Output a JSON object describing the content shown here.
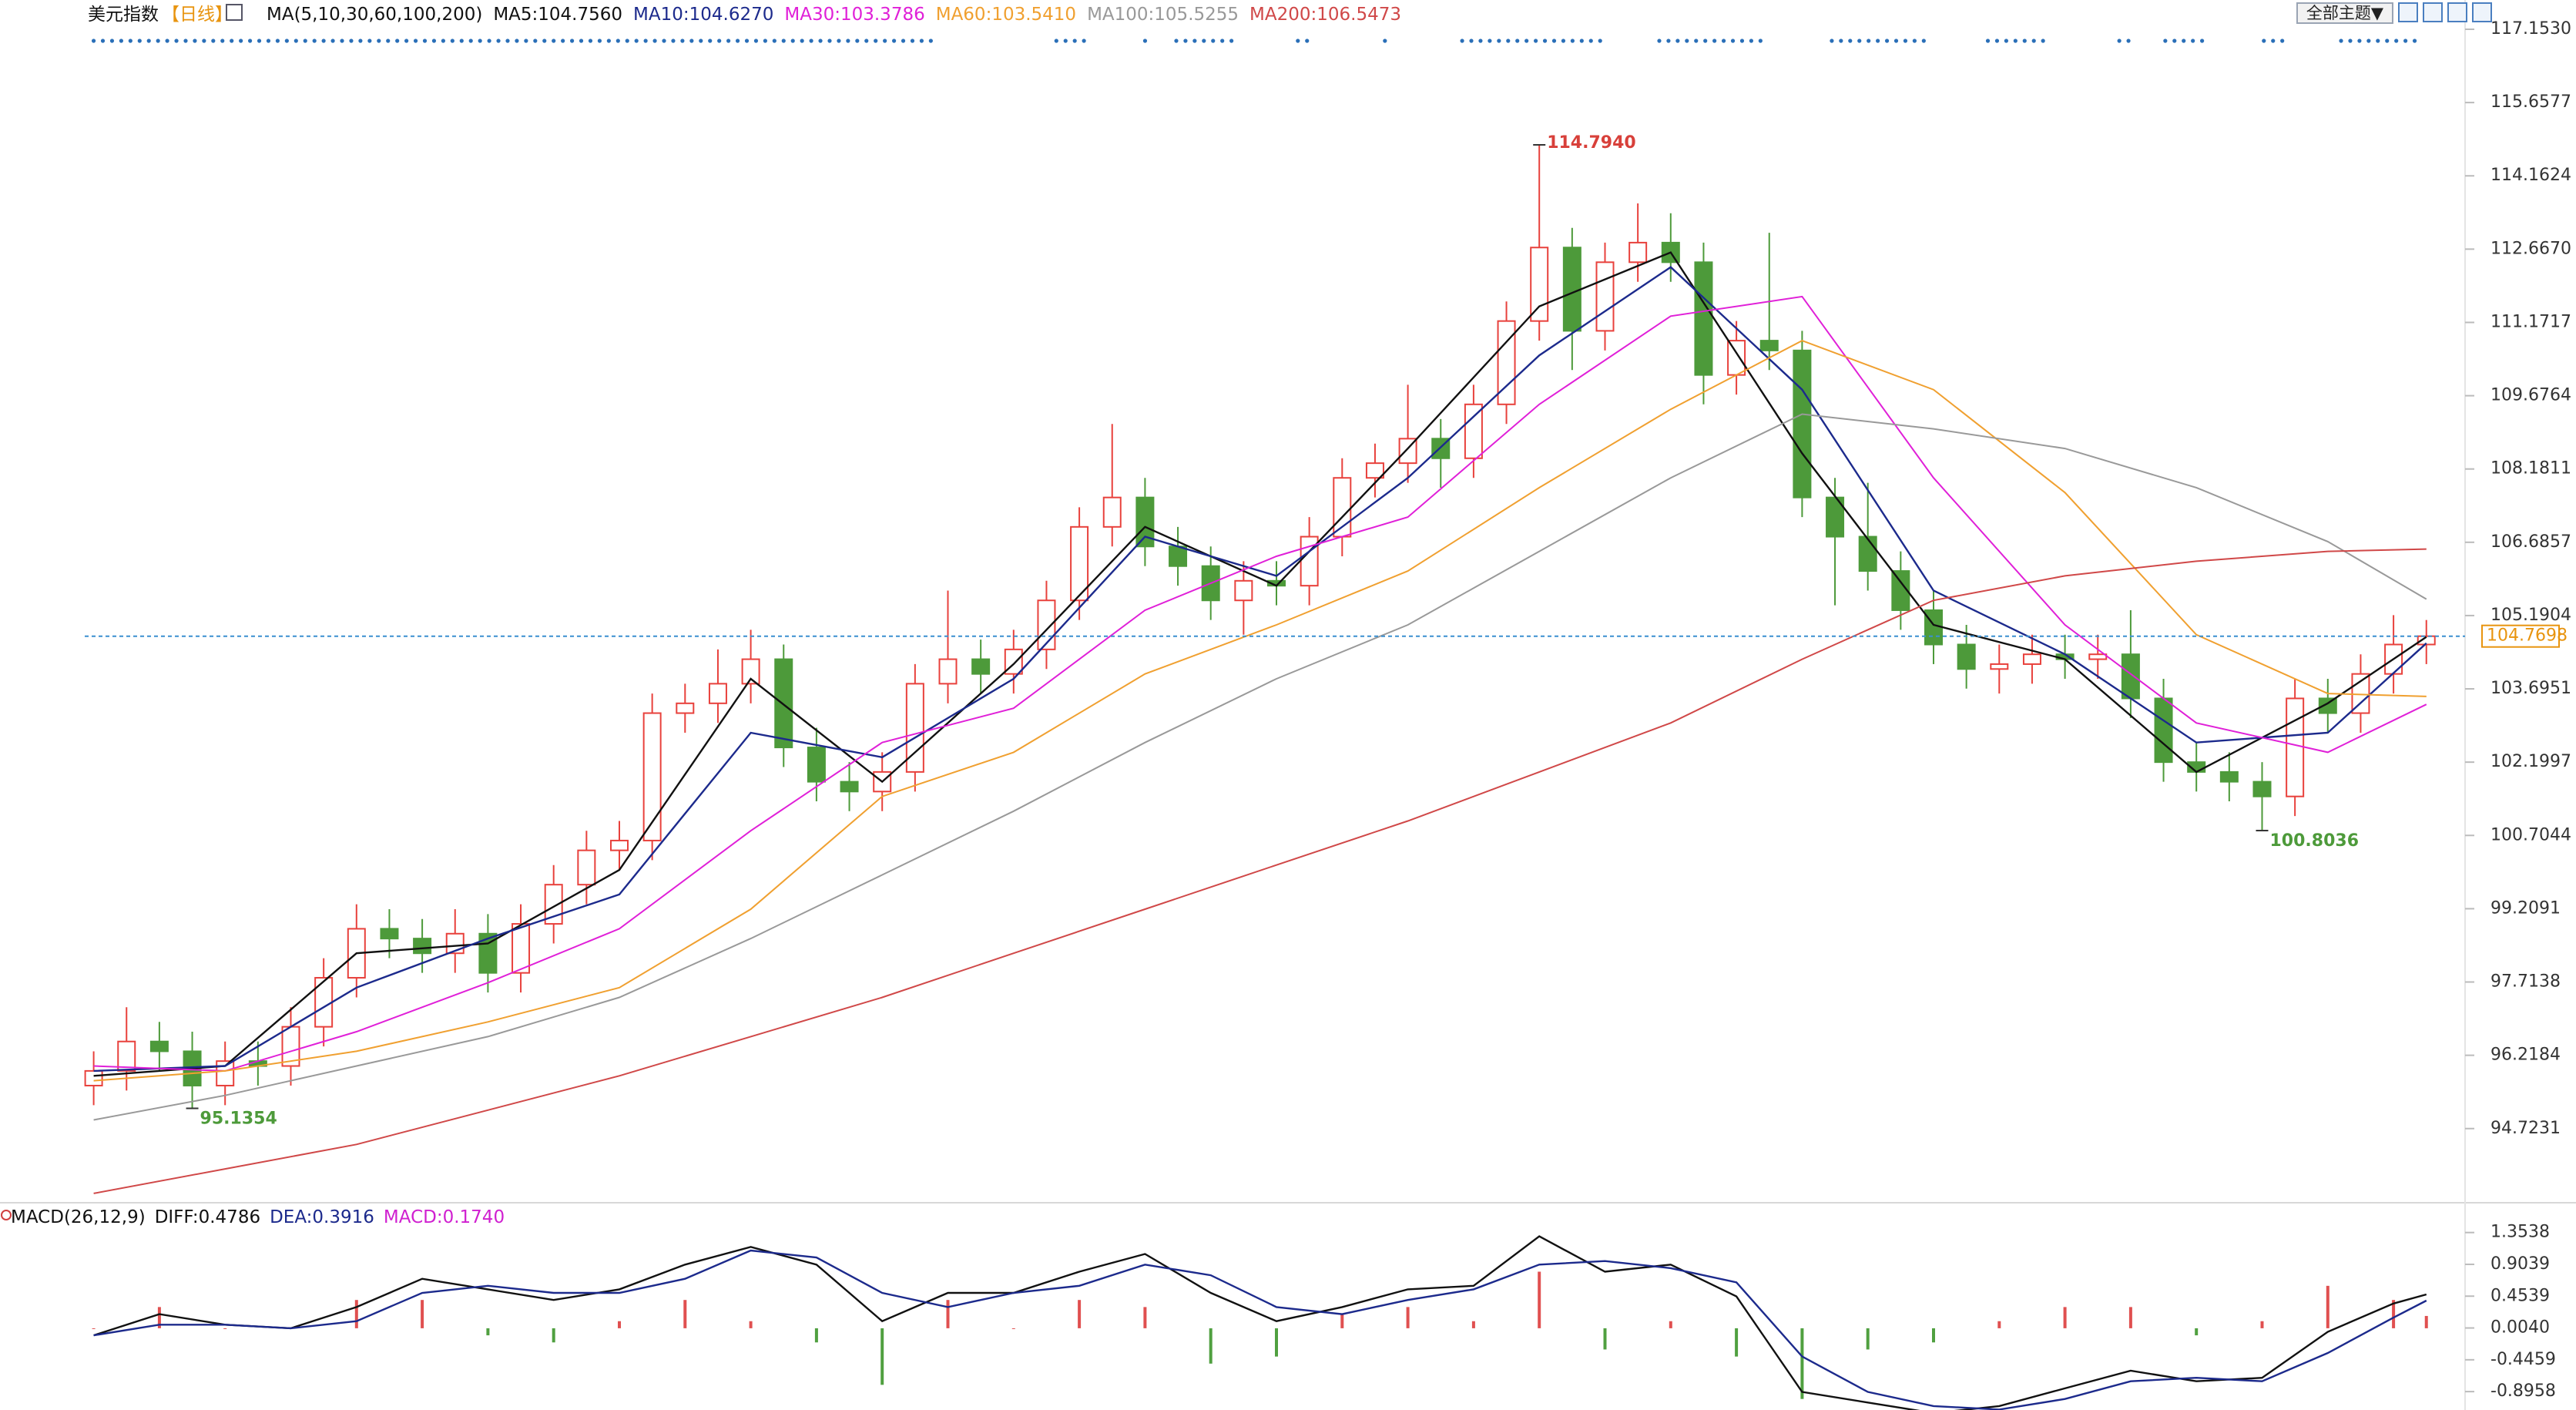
{
  "toolbar": {
    "theme_button": "全部主题▼"
  },
  "chart_data": [
    {
      "type": "candlestick",
      "title": "美元指数",
      "period": "【日线】",
      "ma_params": "MA(5,10,30,60,100,200)",
      "open": [
        95.6,
        95.9,
        96.5,
        96.3,
        95.6,
        96.1,
        96.0,
        96.8,
        97.8,
        98.8,
        98.6,
        98.3,
        98.7,
        97.9,
        98.9,
        99.7,
        100.4,
        100.6,
        103.2,
        103.4,
        103.8,
        104.3,
        102.5,
        101.8,
        101.6,
        102.0,
        103.8,
        104.3,
        104.0,
        104.5,
        105.5,
        107.0,
        107.6,
        106.6,
        106.2,
        105.5,
        105.9,
        105.8,
        106.8,
        108.0,
        108.3,
        108.8,
        108.4,
        109.5,
        111.2,
        112.7,
        111.0,
        112.4,
        112.8,
        112.4,
        110.1,
        110.8,
        110.6,
        107.6,
        106.8,
        106.1,
        105.3,
        104.6,
        104.1,
        104.2,
        104.4,
        104.3,
        104.4,
        103.5,
        102.2,
        102.0,
        101.8,
        101.5,
        103.5,
        103.2,
        104.0,
        104.6
      ],
      "high": [
        96.3,
        97.2,
        96.9,
        96.7,
        96.5,
        96.5,
        97.2,
        98.2,
        99.3,
        99.2,
        99.0,
        99.2,
        99.1,
        99.3,
        100.1,
        100.8,
        101.0,
        103.6,
        103.8,
        104.5,
        104.9,
        104.6,
        102.9,
        102.2,
        102.4,
        104.2,
        105.7,
        104.7,
        104.9,
        105.9,
        107.4,
        109.1,
        108.0,
        107.0,
        106.6,
        106.3,
        106.3,
        107.2,
        108.4,
        108.7,
        109.9,
        109.2,
        109.9,
        111.6,
        114.794,
        113.1,
        112.8,
        113.6,
        113.4,
        112.8,
        111.2,
        113.0,
        111.0,
        108.0,
        107.9,
        106.5,
        105.7,
        105.0,
        104.6,
        104.8,
        104.8,
        104.8,
        105.3,
        103.9,
        102.6,
        102.4,
        102.2,
        103.9,
        103.9,
        104.4,
        105.2,
        105.1
      ],
      "low": [
        95.2,
        95.5,
        95.9,
        95.1354,
        95.2,
        95.6,
        95.6,
        96.4,
        97.4,
        98.2,
        97.9,
        97.9,
        97.5,
        97.5,
        98.5,
        99.3,
        100.0,
        100.2,
        102.8,
        103.0,
        103.4,
        102.1,
        101.4,
        101.2,
        101.2,
        101.6,
        103.4,
        103.6,
        103.6,
        104.1,
        105.1,
        106.6,
        106.2,
        105.8,
        105.1,
        104.8,
        105.4,
        105.4,
        106.4,
        107.6,
        107.9,
        107.8,
        108.0,
        109.1,
        110.8,
        110.2,
        110.6,
        112.0,
        112.0,
        109.5,
        109.7,
        110.2,
        107.2,
        105.4,
        105.7,
        104.9,
        104.2,
        103.7,
        103.6,
        103.8,
        103.9,
        103.9,
        103.1,
        101.8,
        101.6,
        101.4,
        100.8036,
        101.1,
        102.8,
        102.8,
        103.6,
        104.2
      ],
      "close": [
        95.9,
        96.5,
        96.3,
        95.6,
        96.1,
        96.0,
        96.8,
        97.8,
        98.8,
        98.6,
        98.3,
        98.7,
        97.9,
        98.9,
        99.7,
        100.4,
        100.6,
        103.2,
        103.4,
        103.8,
        104.3,
        102.5,
        101.8,
        101.6,
        102.0,
        103.8,
        104.3,
        104.0,
        104.5,
        105.5,
        107.0,
        107.6,
        106.6,
        106.2,
        105.5,
        105.9,
        105.8,
        106.8,
        108.0,
        108.3,
        108.8,
        108.4,
        109.5,
        111.2,
        112.7,
        111.0,
        112.4,
        112.8,
        112.4,
        110.1,
        110.8,
        110.6,
        107.6,
        106.8,
        106.1,
        105.3,
        104.6,
        104.1,
        104.2,
        104.4,
        104.3,
        104.4,
        103.5,
        102.2,
        102.0,
        101.8,
        101.5,
        103.5,
        103.2,
        104.0,
        104.6,
        104.7698
      ],
      "up_color": "#e8413c",
      "down_color": "#4d9a3a",
      "ma_x": [
        0,
        4,
        8,
        12,
        16,
        20,
        24,
        28,
        32,
        36,
        40,
        44,
        48,
        52,
        56,
        60,
        64,
        68,
        71
      ],
      "series": [
        {
          "name": "MA5:104.7560",
          "color": "#111111",
          "values": [
            95.8,
            96.0,
            98.3,
            98.5,
            100.0,
            103.9,
            101.8,
            104.2,
            107.0,
            105.8,
            108.6,
            111.5,
            112.6,
            108.5,
            105.0,
            104.3,
            102.0,
            103.4,
            104.756
          ]
        },
        {
          "name": "MA10:104.6270",
          "color": "#1c2a8c",
          "values": [
            95.9,
            96.0,
            97.6,
            98.6,
            99.5,
            102.8,
            102.3,
            103.9,
            106.8,
            106.0,
            108.0,
            110.5,
            112.3,
            109.8,
            105.7,
            104.4,
            102.6,
            102.8,
            104.627
          ]
        },
        {
          "name": "MA30:103.3786",
          "color": "#e020d8",
          "values": [
            96.0,
            95.9,
            96.7,
            97.7,
            98.8,
            100.8,
            102.6,
            103.3,
            105.3,
            106.4,
            107.2,
            109.5,
            111.3,
            111.7,
            108.0,
            105.0,
            103.0,
            102.4,
            103.3786
          ]
        },
        {
          "name": "MA60:103.5410",
          "color": "#f0a030",
          "values": [
            95.7,
            95.9,
            96.3,
            96.9,
            97.6,
            99.2,
            101.5,
            102.4,
            104.0,
            105.0,
            106.1,
            107.8,
            109.4,
            110.8,
            109.8,
            107.7,
            104.8,
            103.6,
            103.541
          ]
        },
        {
          "name": "MA100:105.5255",
          "color": "#999999",
          "values": [
            94.9,
            95.4,
            96.0,
            96.6,
            97.4,
            98.6,
            99.9,
            101.2,
            102.6,
            103.9,
            105.0,
            106.5,
            108.0,
            109.3,
            109.0,
            108.6,
            107.8,
            106.7,
            105.5255
          ]
        },
        {
          "name": "MA200:106.5473",
          "color": "#d04848",
          "values": [
            93.4,
            93.9,
            94.4,
            95.1,
            95.8,
            96.6,
            97.4,
            98.3,
            99.2,
            100.1,
            101.0,
            102.0,
            103.0,
            104.3,
            105.5,
            106.0,
            106.3,
            106.5,
            106.5473
          ]
        }
      ],
      "ylim": [
        93.21,
        117.153
      ],
      "yticks": [
        {
          "value": 117.153,
          "label": "117.1530"
        },
        115.6577,
        114.1624,
        {
          "value": 112.667,
          "label": "112.6670"
        },
        111.1717,
        109.6764,
        108.1811,
        106.6857,
        105.1904,
        103.6951,
        102.1997,
        100.7044,
        99.2091,
        97.7138,
        96.2184,
        94.7231
      ],
      "grid": false,
      "annotations": [
        {
          "x": 44,
          "value": 114.794,
          "label": "114.7940",
          "color": "#d8403a"
        },
        {
          "x": 66,
          "value": 100.8036,
          "label": "100.8036",
          "color": "#4d9a3a"
        },
        {
          "x": 3,
          "value": 95.1354,
          "label": "95.1354",
          "color": "#4d9a3a"
        }
      ],
      "last_price": 104.7698,
      "last_price_color": "#e8940f"
    },
    {
      "type": "macd",
      "title": "MACD(26,12,9)",
      "x": [
        0,
        2,
        4,
        6,
        8,
        10,
        12,
        14,
        16,
        18,
        20,
        22,
        24,
        26,
        28,
        30,
        32,
        34,
        36,
        38,
        40,
        42,
        44,
        46,
        48,
        50,
        52,
        54,
        56,
        58,
        60,
        62,
        64,
        66,
        68,
        70,
        71
      ],
      "series": [
        {
          "name": "DIFF:0.4786",
          "color": "#111111",
          "values": [
            -0.1,
            0.2,
            0.05,
            0.0,
            0.3,
            0.7,
            0.55,
            0.4,
            0.55,
            0.9,
            1.15,
            0.9,
            0.1,
            0.5,
            0.5,
            0.8,
            1.05,
            0.5,
            0.1,
            0.3,
            0.55,
            0.6,
            1.3,
            0.8,
            0.9,
            0.45,
            -0.9,
            -1.05,
            -1.2,
            -1.1,
            -0.85,
            -0.6,
            -0.75,
            -0.7,
            -0.05,
            0.35,
            0.4786
          ]
        },
        {
          "name": "DEA:0.3916",
          "color": "#1c2a8c",
          "values": [
            -0.1,
            0.05,
            0.05,
            0.0,
            0.1,
            0.5,
            0.6,
            0.5,
            0.5,
            0.7,
            1.1,
            1.0,
            0.5,
            0.3,
            0.5,
            0.6,
            0.9,
            0.75,
            0.3,
            0.2,
            0.4,
            0.55,
            0.9,
            0.95,
            0.85,
            0.65,
            -0.4,
            -0.9,
            -1.1,
            -1.15,
            -1.0,
            -0.75,
            -0.7,
            -0.75,
            -0.35,
            0.15,
            0.3916
          ]
        }
      ],
      "histogram": {
        "name": "MACD:0.1740",
        "color": "#d020d0",
        "up_color": "#e05050",
        "down_color": "#50a040",
        "values": [
          0,
          0.3,
          0,
          0,
          0.4,
          0.4,
          -0.1,
          -0.2,
          0.1,
          0.4,
          0.1,
          -0.2,
          -0.8,
          0.4,
          0,
          0.4,
          0.3,
          -0.5,
          -0.4,
          0.2,
          0.3,
          0.1,
          0.8,
          -0.3,
          0.1,
          -0.4,
          -1.0,
          -0.3,
          -0.2,
          0.1,
          0.3,
          0.3,
          -0.1,
          0.1,
          0.6,
          0.4,
          0.174
        ]
      },
      "ylim": [
        -1.156,
        1.47
      ],
      "yticks": [
        1.3538,
        0.9039,
        0.4539,
        {
          "value": 0.004,
          "label": "0.0040"
        },
        -0.4459,
        -0.8958
      ]
    }
  ]
}
